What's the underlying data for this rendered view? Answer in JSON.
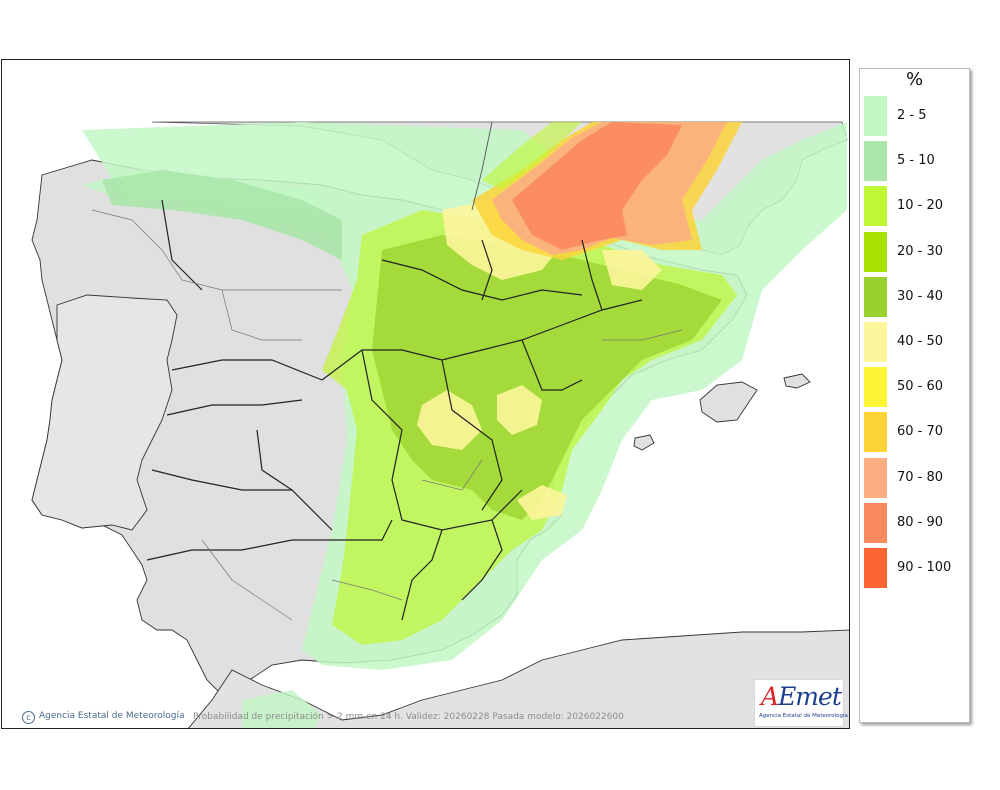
{
  "map": {
    "caption": "Probabilidad de precipitación > 2 mm en 24 h. Validez: 20260228 Pasada modelo: 2026022600",
    "credit": "Agencia Estatal de Meteorología",
    "logo_text": "AEmet",
    "logo_subtext": "Agencia Estatal de Meteorología",
    "land_color": "#e0e0e0",
    "sea_color": "#ffffff"
  },
  "legend": {
    "unit": "%",
    "items": [
      {
        "label": "2 - 5",
        "color": "#c2f7c4"
      },
      {
        "label": "5 - 10",
        "color": "#abe6ab"
      },
      {
        "label": "10 - 20",
        "color": "#bff734"
      },
      {
        "label": "20 - 30",
        "color": "#a6e100"
      },
      {
        "label": "30 - 40",
        "color": "#99d22e"
      },
      {
        "label": "40 - 50",
        "color": "#fdf59b"
      },
      {
        "label": "50 - 60",
        "color": "#fdf635"
      },
      {
        "label": "60 - 70",
        "color": "#fcd43a"
      },
      {
        "label": "70 - 80",
        "color": "#fbae82"
      },
      {
        "label": "80 - 90",
        "color": "#fb8a5e"
      },
      {
        "label": "90 - 100",
        "color": "#fb6633"
      }
    ]
  }
}
